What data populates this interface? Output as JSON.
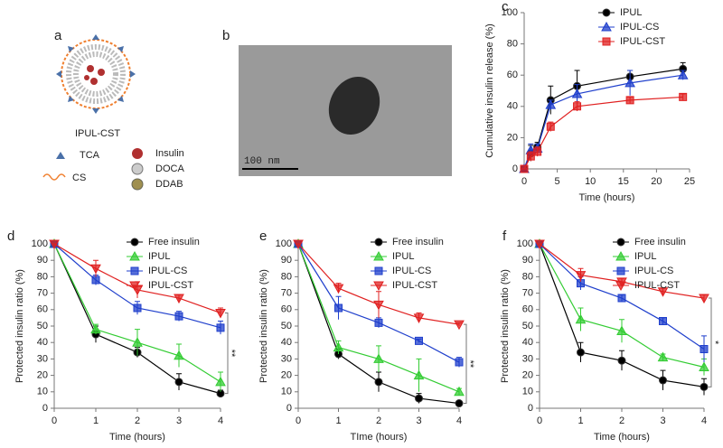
{
  "figure": {
    "a": {
      "label": "a",
      "title": "IPUL-CST",
      "legend": [
        "TCA",
        "CS",
        "Insulin",
        "DOCA",
        "DDAB"
      ]
    },
    "b": {
      "label": "b",
      "scale_bar": "100 nm"
    }
  },
  "chart_data": [
    {
      "type": "line",
      "label": "c",
      "xlabel": "Time (hours)",
      "ylabel": "Cumulative insulin release (%)",
      "x": [
        0,
        1,
        2,
        4,
        8,
        16,
        24
      ],
      "xlim": [
        0,
        25
      ],
      "xticks": [
        0,
        5,
        10,
        15,
        20,
        25
      ],
      "ylim": [
        0,
        100
      ],
      "yticks": [
        0,
        20,
        40,
        60,
        80,
        100
      ],
      "series": [
        {
          "name": "IPUL",
          "color": "#000000",
          "marker": "circle",
          "values": [
            0,
            10,
            14,
            44,
            53,
            59,
            64
          ],
          "errors": [
            0,
            5,
            3,
            9,
            10,
            4,
            4
          ]
        },
        {
          "name": "IPUL-CS",
          "color": "#1f3fcc",
          "marker": "triangle-up",
          "values": [
            0,
            12,
            13,
            41,
            48,
            55,
            60
          ],
          "errors": [
            0,
            4,
            3,
            3,
            6,
            8,
            3
          ]
        },
        {
          "name": "IPUL-CST",
          "color": "#e02020",
          "marker": "square",
          "values": [
            0,
            8,
            11,
            27,
            40,
            44,
            46
          ],
          "errors": [
            0,
            3,
            3,
            3,
            3,
            2,
            2
          ]
        }
      ]
    },
    {
      "type": "line",
      "label": "d",
      "xlabel": "Time (hours)",
      "ylabel": "Protected insulin ratio (%)",
      "x": [
        0,
        1,
        2,
        3,
        4
      ],
      "xlim": [
        0,
        4
      ],
      "xticks": [
        0,
        1,
        2,
        3,
        4
      ],
      "ylim": [
        0,
        100
      ],
      "yticks": [
        0,
        10,
        20,
        30,
        40,
        50,
        60,
        70,
        80,
        90,
        100
      ],
      "annotation": "**",
      "series": [
        {
          "name": "Free insulin",
          "color": "#000000",
          "marker": "circle",
          "values": [
            100,
            45,
            34,
            16,
            9
          ],
          "errors": [
            0,
            5,
            3,
            5,
            2
          ]
        },
        {
          "name": "IPUL",
          "color": "#33cc33",
          "marker": "triangle-up",
          "values": [
            100,
            48,
            40,
            32,
            16
          ],
          "errors": [
            0,
            3,
            8,
            7,
            6
          ]
        },
        {
          "name": "IPUL-CS",
          "color": "#1f3fcc",
          "marker": "square",
          "values": [
            100,
            78,
            61,
            56,
            49
          ],
          "errors": [
            0,
            3,
            4,
            3,
            4
          ]
        },
        {
          "name": "IPUL-CST",
          "color": "#e02020",
          "marker": "triangle-down",
          "values": [
            100,
            85,
            72,
            67,
            58
          ],
          "errors": [
            0,
            5,
            5,
            2,
            3
          ]
        }
      ]
    },
    {
      "type": "line",
      "label": "e",
      "xlabel": "TIme (hours)",
      "ylabel": "Protected insulin ratio (%)",
      "x": [
        0,
        1,
        2,
        3,
        4
      ],
      "xlim": [
        0,
        4
      ],
      "xticks": [
        0,
        1,
        2,
        3,
        4
      ],
      "ylim": [
        0,
        100
      ],
      "yticks": [
        0,
        10,
        20,
        30,
        40,
        50,
        60,
        70,
        80,
        90,
        100
      ],
      "annotation": "**",
      "series": [
        {
          "name": "Free insulin",
          "color": "#000000",
          "marker": "circle",
          "values": [
            100,
            33,
            16,
            6,
            3
          ],
          "errors": [
            0,
            3,
            6,
            3,
            1
          ]
        },
        {
          "name": "IPUL",
          "color": "#33cc33",
          "marker": "triangle-up",
          "values": [
            100,
            37,
            30,
            20,
            10
          ],
          "errors": [
            0,
            4,
            8,
            10,
            2
          ]
        },
        {
          "name": "IPUL-CS",
          "color": "#1f3fcc",
          "marker": "square",
          "values": [
            100,
            61,
            52,
            41,
            28
          ],
          "errors": [
            0,
            7,
            3,
            1,
            3
          ]
        },
        {
          "name": "IPUL-CST",
          "color": "#e02020",
          "marker": "triangle-down",
          "values": [
            100,
            73,
            63,
            55,
            51
          ],
          "errors": [
            0,
            3,
            8,
            3,
            1
          ]
        }
      ]
    },
    {
      "type": "line",
      "label": "f",
      "xlabel": "Time (hours)",
      "ylabel": "Protected insulin ratio (%)",
      "x": [
        0,
        1,
        2,
        3,
        4
      ],
      "xlim": [
        0,
        4
      ],
      "xticks": [
        0,
        1,
        2,
        3,
        4
      ],
      "ylim": [
        0,
        100
      ],
      "yticks": [
        0,
        10,
        20,
        30,
        40,
        50,
        60,
        70,
        80,
        90,
        100
      ],
      "annotation": "*",
      "series": [
        {
          "name": "Free insulin",
          "color": "#000000",
          "marker": "circle",
          "values": [
            100,
            34,
            29,
            17,
            13
          ],
          "errors": [
            0,
            6,
            6,
            6,
            5
          ]
        },
        {
          "name": "IPUL",
          "color": "#33cc33",
          "marker": "triangle-up",
          "values": [
            100,
            54,
            47,
            31,
            25
          ],
          "errors": [
            0,
            7,
            7,
            2,
            5
          ]
        },
        {
          "name": "IPUL-CS",
          "color": "#1f3fcc",
          "marker": "square",
          "values": [
            100,
            76,
            67,
            53,
            36
          ],
          "errors": [
            0,
            4,
            2,
            2,
            8
          ]
        },
        {
          "name": "IPUL-CST",
          "color": "#e02020",
          "marker": "triangle-down",
          "values": [
            100,
            81,
            77,
            71,
            67
          ],
          "errors": [
            0,
            4,
            2,
            2,
            2
          ]
        }
      ]
    }
  ]
}
